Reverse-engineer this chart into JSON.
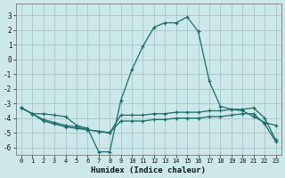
{
  "xlabel": "Humidex (Indice chaleur)",
  "xlim": [
    -0.5,
    23.5
  ],
  "ylim": [
    -6.5,
    3.8
  ],
  "yticks": [
    -6,
    -5,
    -4,
    -3,
    -2,
    -1,
    0,
    1,
    2,
    3
  ],
  "xticks": [
    0,
    1,
    2,
    3,
    4,
    5,
    6,
    7,
    8,
    9,
    10,
    11,
    12,
    13,
    14,
    15,
    16,
    17,
    18,
    19,
    20,
    21,
    22,
    23
  ],
  "bg_color": "#cce8e8",
  "grid_color": "#aacccc",
  "line_color": "#1a6b6b",
  "line1_x": [
    0,
    1,
    2,
    3,
    4,
    5,
    6,
    7,
    8,
    9,
    10,
    11,
    12,
    13,
    14,
    15,
    16,
    17,
    18,
    19,
    20,
    21,
    22,
    23
  ],
  "line1_y": [
    -3.3,
    -3.7,
    -3.7,
    -3.8,
    -3.9,
    -4.5,
    -4.7,
    -6.3,
    -6.3,
    -2.8,
    -0.7,
    0.9,
    2.2,
    2.5,
    2.5,
    2.9,
    1.9,
    -1.5,
    -3.2,
    -3.4,
    -3.5,
    -3.9,
    -4.3,
    -4.5
  ],
  "line2_x": [
    0,
    1,
    2,
    3,
    4,
    5,
    6,
    7,
    8,
    9,
    10,
    11,
    12,
    13,
    14,
    15,
    16,
    17,
    18,
    19,
    20,
    21,
    22,
    23
  ],
  "line2_y": [
    -3.3,
    -3.7,
    -4.2,
    -4.4,
    -4.6,
    -4.7,
    -4.8,
    -4.9,
    -5.0,
    -3.8,
    -3.8,
    -3.8,
    -3.7,
    -3.7,
    -3.6,
    -3.6,
    -3.6,
    -3.5,
    -3.5,
    -3.4,
    -3.4,
    -3.3,
    -4.0,
    -5.5
  ],
  "line3_x": [
    0,
    1,
    2,
    3,
    4,
    5,
    6,
    7,
    8,
    9,
    10,
    11,
    12,
    13,
    14,
    15,
    16,
    17,
    18,
    19,
    20,
    21,
    22,
    23
  ],
  "line3_y": [
    -3.3,
    -3.7,
    -4.1,
    -4.3,
    -4.5,
    -4.6,
    -4.8,
    -4.9,
    -5.0,
    -4.2,
    -4.2,
    -4.2,
    -4.1,
    -4.1,
    -4.0,
    -4.0,
    -4.0,
    -3.9,
    -3.9,
    -3.8,
    -3.7,
    -3.7,
    -4.4,
    -5.6
  ],
  "tick_fontsize": 5.5,
  "xlabel_fontsize": 6.5
}
